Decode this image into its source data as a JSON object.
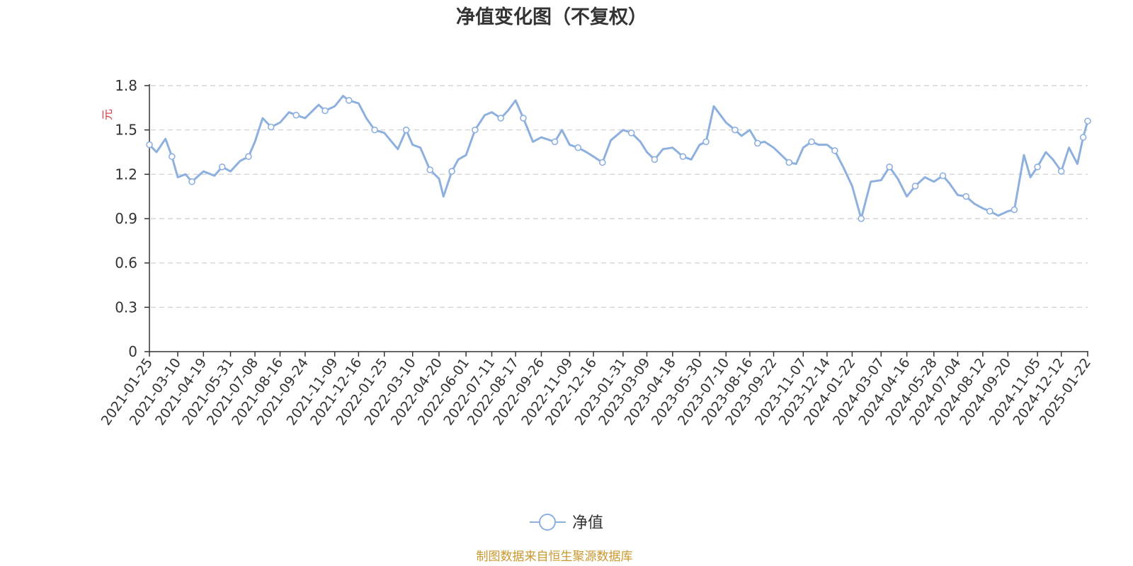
{
  "chart_data": {
    "type": "line",
    "title": "净值变化图（不复权）",
    "ylabel": "元",
    "ylim": [
      0,
      1.8
    ],
    "yticks": [
      "0",
      "0.3",
      "0.6",
      "0.9",
      "1.2",
      "1.5",
      "1.8"
    ],
    "grid": true,
    "legend_position": "bottom-center",
    "xtick_labels": [
      "2021-01-25",
      "2021-03-10",
      "2021-04-19",
      "2021-05-31",
      "2021-07-08",
      "2021-08-16",
      "2021-09-24",
      "2021-11-09",
      "2021-12-16",
      "2022-01-25",
      "2022-03-10",
      "2022-04-20",
      "2022-06-01",
      "2022-07-11",
      "2022-08-17",
      "2022-09-26",
      "2022-11-09",
      "2022-12-16",
      "2023-01-31",
      "2023-03-09",
      "2023-04-18",
      "2023-05-30",
      "2023-07-10",
      "2023-08-16",
      "2023-09-22",
      "2023-11-07",
      "2023-12-14",
      "2024-01-22",
      "2024-03-07",
      "2024-04-16",
      "2024-05-28",
      "2024-07-04",
      "2024-08-12",
      "2024-09-20",
      "2024-11-05",
      "2024-12-12",
      "2025-01-22"
    ],
    "series": [
      {
        "name": "净值",
        "color": "#8eb0de",
        "x": [
          "2021-01-25",
          "2021-02-05",
          "2021-02-19",
          "2021-03-01",
          "2021-03-10",
          "2021-03-22",
          "2021-04-01",
          "2021-04-19",
          "2021-05-06",
          "2021-05-18",
          "2021-05-31",
          "2021-06-15",
          "2021-06-28",
          "2021-07-08",
          "2021-07-20",
          "2021-08-02",
          "2021-08-16",
          "2021-08-30",
          "2021-09-10",
          "2021-09-24",
          "2021-10-15",
          "2021-10-25",
          "2021-11-09",
          "2021-11-22",
          "2021-12-01",
          "2021-12-16",
          "2021-12-28",
          "2022-01-10",
          "2022-01-25",
          "2022-02-15",
          "2022-02-28",
          "2022-03-10",
          "2022-03-22",
          "2022-04-06",
          "2022-04-20",
          "2022-04-27",
          "2022-05-10",
          "2022-05-20",
          "2022-06-01",
          "2022-06-15",
          "2022-06-30",
          "2022-07-11",
          "2022-07-25",
          "2022-08-05",
          "2022-08-17",
          "2022-08-29",
          "2022-09-13",
          "2022-09-26",
          "2022-10-17",
          "2022-10-28",
          "2022-11-09",
          "2022-11-22",
          "2022-12-05",
          "2022-12-16",
          "2022-12-30",
          "2023-01-12",
          "2023-01-31",
          "2023-02-13",
          "2023-02-27",
          "2023-03-09",
          "2023-03-21",
          "2023-04-03",
          "2023-04-18",
          "2023-05-04",
          "2023-05-17",
          "2023-05-30",
          "2023-06-09",
          "2023-06-21",
          "2023-07-10",
          "2023-07-24",
          "2023-08-03",
          "2023-08-16",
          "2023-08-28",
          "2023-09-08",
          "2023-09-22",
          "2023-10-16",
          "2023-10-27",
          "2023-11-07",
          "2023-11-20",
          "2023-12-01",
          "2023-12-14",
          "2023-12-26",
          "2024-01-08",
          "2024-01-22",
          "2024-02-05",
          "2024-02-20",
          "2024-03-07",
          "2024-03-20",
          "2024-04-02",
          "2024-04-16",
          "2024-04-29",
          "2024-05-14",
          "2024-05-28",
          "2024-06-11",
          "2024-06-21",
          "2024-07-04",
          "2024-07-17",
          "2024-07-30",
          "2024-08-12",
          "2024-08-23",
          "2024-09-05",
          "2024-09-20",
          "2024-09-30",
          "2024-10-15",
          "2024-10-25",
          "2024-11-05",
          "2024-11-18",
          "2024-11-29",
          "2024-12-12",
          "2024-12-24",
          "2025-01-06",
          "2025-01-15",
          "2025-01-22"
        ],
        "values": [
          1.4,
          1.35,
          1.44,
          1.32,
          1.18,
          1.2,
          1.15,
          1.22,
          1.19,
          1.25,
          1.22,
          1.29,
          1.32,
          1.42,
          1.58,
          1.52,
          1.55,
          1.62,
          1.6,
          1.58,
          1.67,
          1.63,
          1.66,
          1.73,
          1.7,
          1.68,
          1.58,
          1.5,
          1.48,
          1.37,
          1.5,
          1.4,
          1.38,
          1.23,
          1.17,
          1.05,
          1.22,
          1.3,
          1.33,
          1.5,
          1.6,
          1.62,
          1.58,
          1.63,
          1.7,
          1.58,
          1.42,
          1.45,
          1.42,
          1.5,
          1.4,
          1.38,
          1.35,
          1.32,
          1.28,
          1.43,
          1.5,
          1.48,
          1.42,
          1.35,
          1.3,
          1.37,
          1.38,
          1.32,
          1.3,
          1.4,
          1.42,
          1.66,
          1.55,
          1.5,
          1.46,
          1.5,
          1.41,
          1.42,
          1.38,
          1.28,
          1.27,
          1.38,
          1.42,
          1.4,
          1.4,
          1.36,
          1.25,
          1.12,
          0.9,
          1.15,
          1.16,
          1.25,
          1.17,
          1.05,
          1.12,
          1.18,
          1.15,
          1.19,
          1.14,
          1.06,
          1.05,
          1.0,
          0.97,
          0.95,
          0.92,
          0.95,
          0.96,
          1.33,
          1.18,
          1.25,
          1.35,
          1.3,
          1.22,
          1.38,
          1.27,
          1.45,
          1.56
        ]
      }
    ]
  },
  "source_note": "制图数据来自恒生聚源数据库"
}
